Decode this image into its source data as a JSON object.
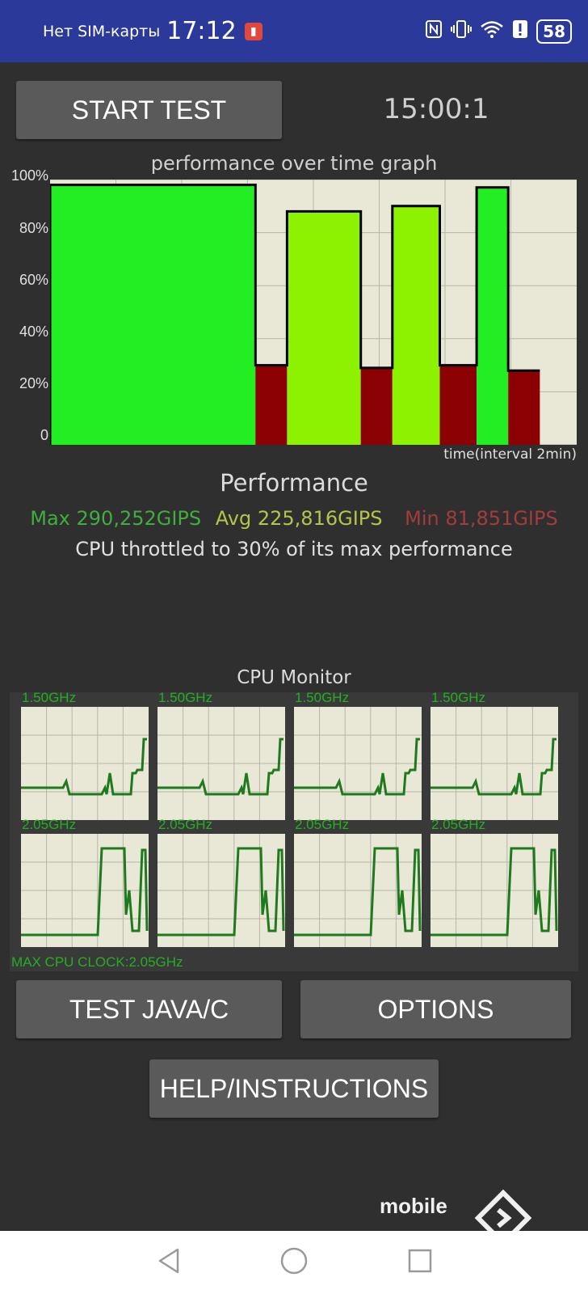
{
  "status_bar": {
    "sim_text": "Нет SIM-карты",
    "time": "17:12",
    "battery": "58",
    "notification_icon": "app-notification-icon",
    "icons": [
      "nfc-icon",
      "vibrate-icon",
      "wifi-icon",
      "alert-icon",
      "battery-icon"
    ]
  },
  "controls": {
    "start_test": "START TEST",
    "timer": "15:00:1",
    "test_java_c": "TEST JAVA/C",
    "options": "OPTIONS",
    "help": "HELP/INSTRUCTIONS"
  },
  "performance_graph": {
    "title": "performance over time graph",
    "y_ticks": [
      "100%",
      "80%",
      "60%",
      "40%",
      "20%",
      "0"
    ],
    "x_label": "time(interval 2min)"
  },
  "chart_data": {
    "type": "area",
    "title": "performance over time graph",
    "xlabel": "time(interval 2min)",
    "ylabel": "",
    "ylim": [
      0,
      100
    ],
    "grid": true,
    "colors": {
      "high": "#22ee22",
      "mid": "#8cf200",
      "throttled": "#8b0000",
      "line": "#000000"
    },
    "segments": [
      {
        "start": 0.0,
        "end": 0.39,
        "performance": 98
      },
      {
        "start": 0.39,
        "end": 0.45,
        "performance": 30
      },
      {
        "start": 0.45,
        "end": 0.59,
        "performance": 88
      },
      {
        "start": 0.59,
        "end": 0.65,
        "performance": 29
      },
      {
        "start": 0.65,
        "end": 0.74,
        "performance": 90
      },
      {
        "start": 0.74,
        "end": 0.81,
        "performance": 30
      },
      {
        "start": 0.81,
        "end": 0.87,
        "performance": 97
      },
      {
        "start": 0.87,
        "end": 0.93,
        "performance": 28
      }
    ]
  },
  "performance": {
    "title": "Performance",
    "max": "Max 290,252GIPS",
    "avg": "Avg 225,816GIPS",
    "min": "Min 81,851GIPS",
    "throttle_text": "CPU throttled to 30% of its max performance"
  },
  "cpu_monitor": {
    "title": "CPU Monitor",
    "cores": [
      {
        "freq": "1.50GHz"
      },
      {
        "freq": "1.50GHz"
      },
      {
        "freq": "1.50GHz"
      },
      {
        "freq": "1.50GHz"
      },
      {
        "freq": "2.05GHz"
      },
      {
        "freq": "2.05GHz"
      },
      {
        "freq": "2.05GHz"
      },
      {
        "freq": "2.05GHz"
      }
    ],
    "max_clock": "MAX CPU CLOCK:2.05GHz"
  },
  "watermark": {
    "text": "mobile"
  },
  "nav": {
    "icons": [
      "back-icon",
      "home-icon",
      "recents-icon"
    ]
  }
}
